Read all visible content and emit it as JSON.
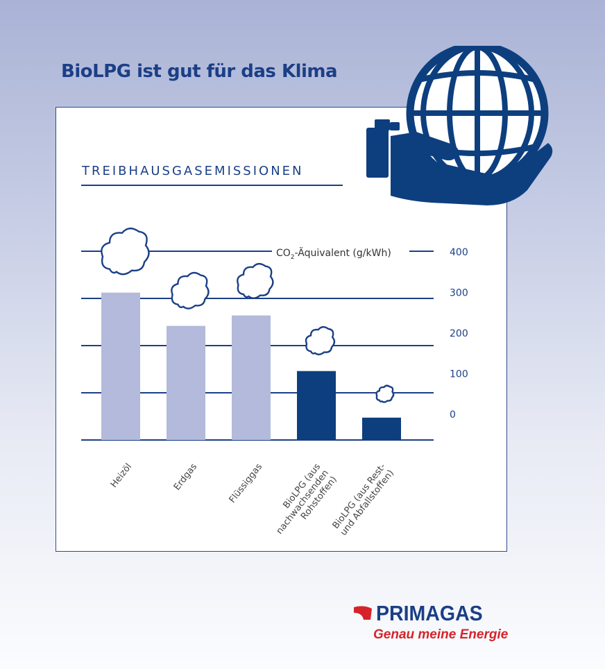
{
  "headline": "BioLPG ist gut für das Klima",
  "colors": {
    "navy": "#1b3f86",
    "bar_light": "#b3badb",
    "bar_dark": "#0d3f7f",
    "brand_red": "#d6232a"
  },
  "icons": [
    "globe-in-hand-icon",
    "cloud-icon",
    "primagas-logo-mark-icon"
  ],
  "chart_data": {
    "type": "bar",
    "title": "TREIBHAUSGASEMISSIONEN",
    "ylabel_main": "CO",
    "ylabel_sub": "2",
    "ylabel_rest": "-Äquivalent (g/kWh)",
    "categories": [
      "Heizöl",
      "Erdgas",
      "Flüssiggas",
      "BioLPG (aus nachwachsenden Rohstoffen)",
      "BioLPG (aus Rest- und Abfallstoffen)"
    ],
    "category_lines": [
      [
        "Heizöl"
      ],
      [
        "Erdgas"
      ],
      [
        "Flüssiggas"
      ],
      [
        "BioLPG (aus",
        "nachwachsenden",
        "Rohstoffen)"
      ],
      [
        "BioLPG (aus Rest-",
        "und Abfallstoffen)"
      ]
    ],
    "values": [
      310,
      240,
      262,
      145,
      47
    ],
    "highlight": [
      false,
      false,
      false,
      true,
      true
    ],
    "ticks": [
      400,
      300,
      200,
      100,
      0
    ],
    "gridlines": 5,
    "legend": "none"
  },
  "brand": {
    "name": "PRIMAGAS",
    "slogan": "Genau meine Energie"
  }
}
